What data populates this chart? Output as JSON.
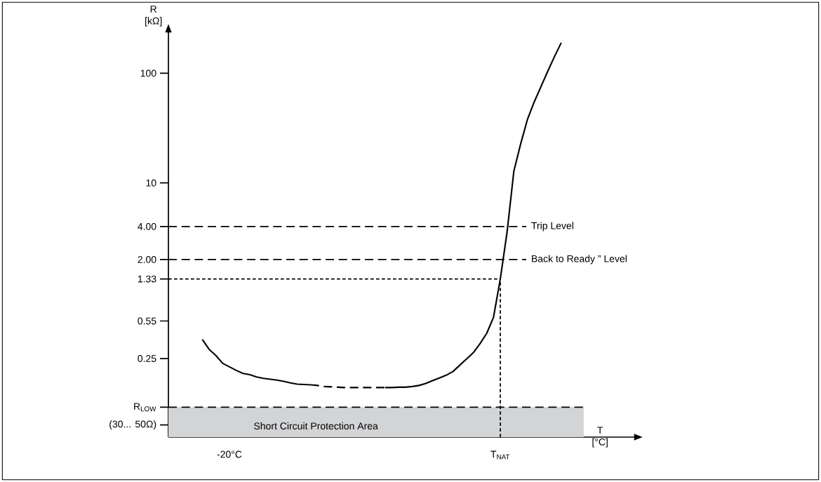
{
  "chart_data": {
    "type": "line",
    "xlabel": "T [°C]",
    "ylabel": "R [kΩ]",
    "log": "y",
    "marker": "none",
    "grid": false,
    "categories": [
      null,
      null,
      null,
      null,
      null,
      null,
      null,
      null,
      "-20°C",
      null,
      null,
      null,
      null,
      null,
      null,
      null,
      null,
      null,
      null,
      null,
      null,
      null,
      null,
      null,
      null,
      null,
      null,
      null,
      null,
      null,
      null,
      null,
      null,
      null,
      null,
      null,
      null,
      null,
      null,
      null,
      null,
      null,
      null,
      null,
      null,
      null,
      null,
      null,
      "T$_{NAT}$",
      null,
      null,
      null,
      null,
      null,
      null,
      null,
      null,
      null,
      null,
      null,
      null,
      null
    ],
    "ylim": [
      0.048,
      240
    ],
    "yticks": [
      100,
      10,
      {
        "value": 4,
        "label": "4.00"
      },
      {
        "value": 2,
        "label": "2.00"
      },
      1.33,
      0.55,
      0.25,
      {
        "value": 0.09,
        "label": "R$_{LOW}$"
      },
      {
        "value": 0.062,
        "label": "(30... 50Ω)"
      }
    ],
    "series": [
      {
        "color": "#000000",
        "line_style": "solid",
        "values": [
          null,
          null,
          null,
          null,
          0.373,
          0.303,
          0.266,
          0.226,
          0.21,
          0.195,
          0.183,
          0.178,
          0.17,
          0.165,
          0.162,
          0.159,
          0.155,
          0.15,
          0.146,
          0.145,
          0.144,
          null,
          null,
          null,
          null,
          null,
          null,
          null,
          null,
          null,
          null,
          null,
          null,
          null,
          null,
          null,
          null,
          null,
          null,
          null,
          null,
          null,
          null,
          null,
          null,
          null,
          null,
          null,
          null,
          null,
          null,
          null,
          null,
          null,
          null,
          null,
          null,
          null,
          null,
          null,
          null,
          null
        ]
      },
      {
        "color": "#000000",
        "line_style": "dashed",
        "values": [
          null,
          null,
          null,
          null,
          null,
          null,
          null,
          null,
          null,
          null,
          null,
          null,
          null,
          null,
          null,
          null,
          null,
          null,
          null,
          null,
          0.144,
          0.142,
          0.139,
          0.138,
          0.137,
          0.136,
          0.136,
          0.136,
          0.136,
          0.136,
          0.136,
          0.136,
          null,
          null,
          null,
          null,
          null,
          null,
          null,
          null,
          null,
          null,
          null,
          null,
          null,
          null,
          null,
          null,
          null,
          null,
          null,
          null,
          null,
          null,
          null,
          null,
          null,
          null,
          null,
          null,
          null,
          null
        ]
      },
      {
        "color": "#000000",
        "line_style": "solid",
        "values": [
          null,
          null,
          null,
          null,
          null,
          null,
          null,
          null,
          null,
          null,
          null,
          null,
          null,
          null,
          null,
          null,
          null,
          null,
          null,
          null,
          null,
          null,
          null,
          null,
          null,
          null,
          null,
          null,
          null,
          null,
          null,
          0.136,
          0.136,
          0.137,
          0.137,
          0.139,
          0.142,
          0.148,
          0.157,
          0.166,
          0.176,
          0.19,
          0.217,
          0.247,
          0.282,
          0.341,
          0.425,
          0.596,
          1.33,
          3.56,
          12.8,
          22.6,
          37.8,
          54.6,
          75.3,
          104,
          142,
          190,
          null,
          null,
          null,
          null
        ]
      }
    ],
    "ref_lines": [
      {
        "axis": "y",
        "value": 4,
        "label": "Trip Level",
        "line_style": "dashed"
      },
      {
        "axis": "y",
        "value": 2,
        "label": "Back to Ready ” Level",
        "line_style": "dashed"
      },
      {
        "axis": "y",
        "value": 1.33,
        "line_style": "dotted"
      },
      {
        "axis": "x",
        "value": "T$_{NAT}$",
        "line_style": "dotted"
      },
      {
        "axis": "y",
        "value": 0.09,
        "line_style": "dashed"
      }
    ],
    "bands": [
      {
        "axis": "y",
        "from": 0.048,
        "to": 0.09,
        "label": "Short Circuit Protection Area",
        "color": "#d3d4d6"
      }
    ]
  }
}
